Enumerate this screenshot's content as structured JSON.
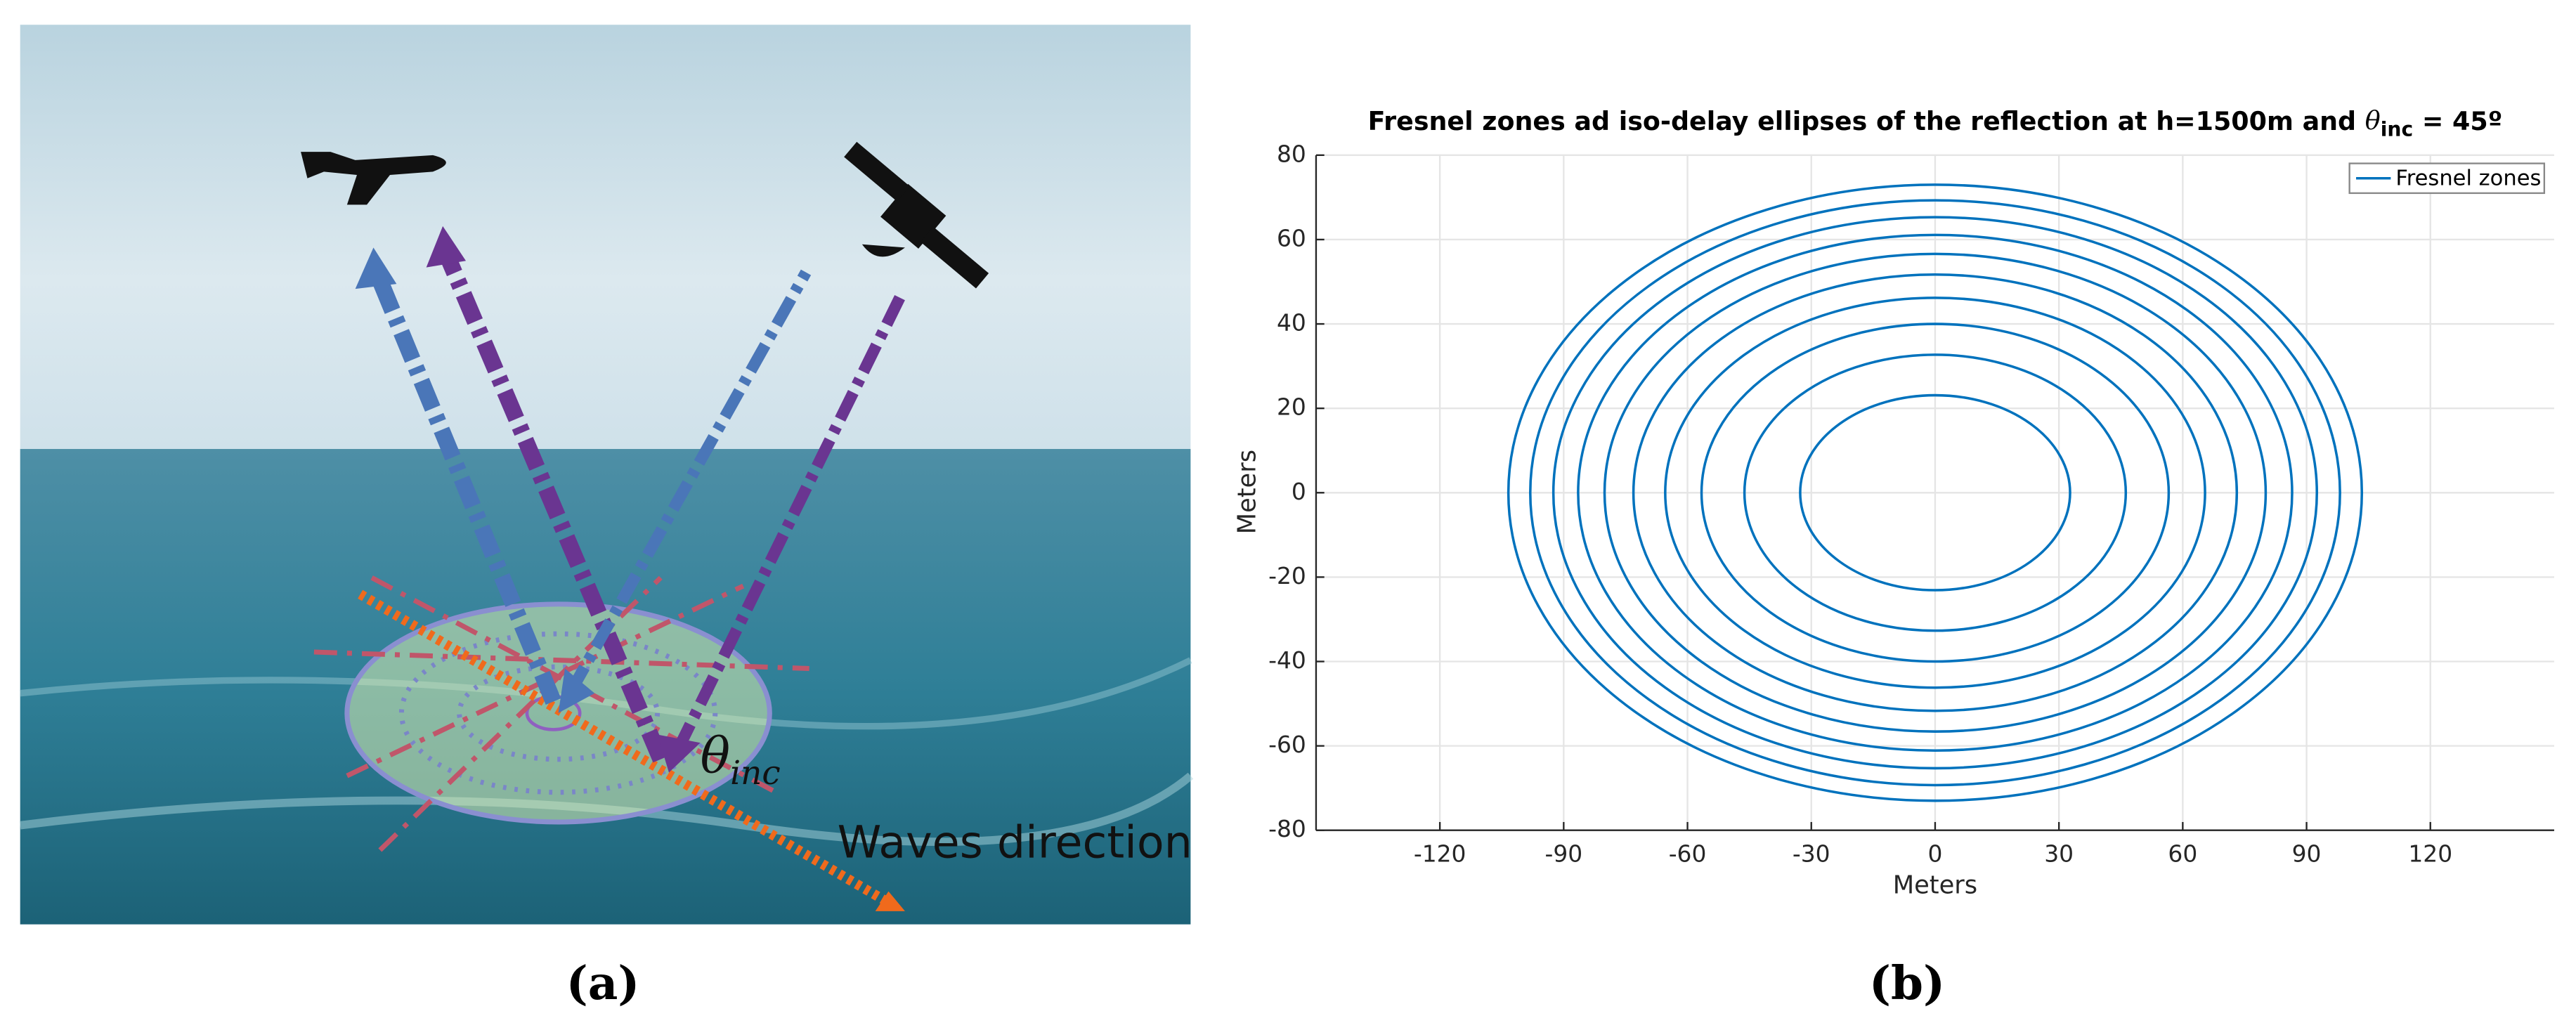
{
  "figure": {
    "panel_a": {
      "label": "(a)",
      "symbol": "θ",
      "subscript": "inc",
      "annotation": "Waves direction"
    },
    "panel_b": {
      "label": "(b)"
    }
  },
  "chart_data": {
    "type": "ellipse",
    "title": [
      "Fresnel zones ad iso-delay ellipses of the reflection at h=1500m and ",
      "θ",
      "inc",
      " = 45º"
    ],
    "x_label": "Meters",
    "y_label": "Meters",
    "xlim": [
      -150,
      150
    ],
    "xticks": [
      -120,
      -90,
      -60,
      -30,
      0,
      30,
      60,
      90,
      120
    ],
    "ylim": [
      -80,
      80
    ],
    "yticks": [
      -80,
      -60,
      -40,
      -20,
      0,
      20,
      40,
      60,
      80
    ],
    "grid": true,
    "legend": "top-right",
    "series": [
      {
        "name": "Fresnel zones",
        "color": "#0072bd",
        "semi_x": [
          32.7,
          46.2,
          56.6,
          65.4,
          73.1,
          80.1,
          86.5,
          92.5,
          98.1,
          103.4
        ],
        "semi_y": [
          23.1,
          32.7,
          40.0,
          46.2,
          51.7,
          56.6,
          61.1,
          65.3,
          69.3,
          73.0
        ]
      }
    ]
  }
}
